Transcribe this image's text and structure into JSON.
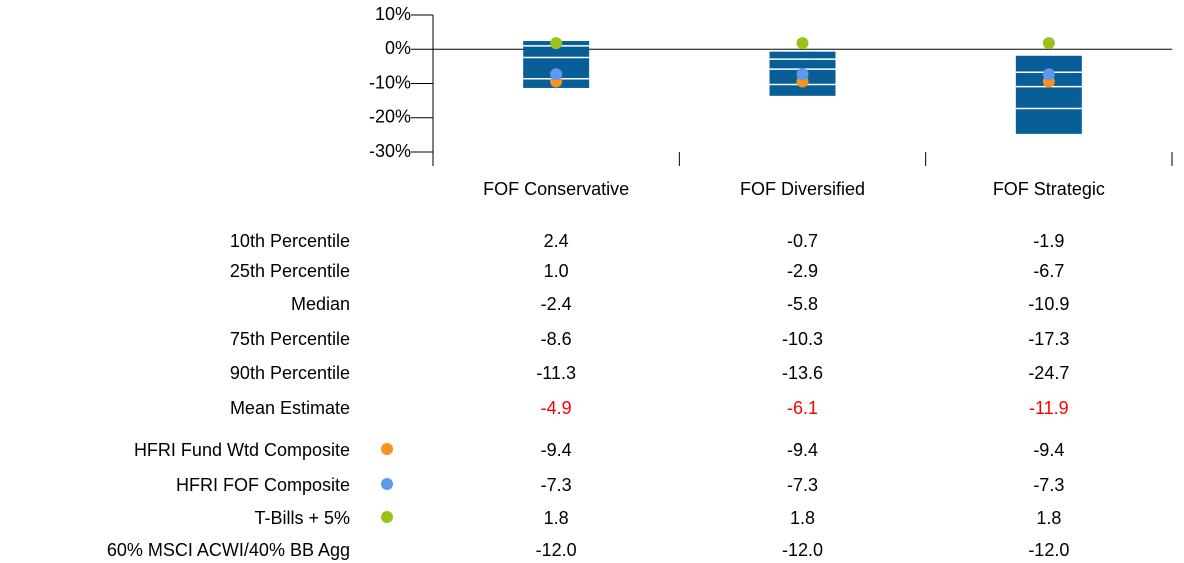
{
  "chart_data": {
    "type": "floating_box",
    "categories": [
      "FOF Conservative",
      "FOF Diversified",
      "FOF Strategic"
    ],
    "ylim": [
      10,
      -30
    ],
    "yticks": [
      {
        "value": 10,
        "label": "10%"
      },
      {
        "value": 0,
        "label": "0%"
      },
      {
        "value": -10,
        "label": "-10%"
      },
      {
        "value": -20,
        "label": "-20%"
      },
      {
        "value": -30,
        "label": "-30%"
      }
    ],
    "box_color": "#085e97",
    "series": [
      {
        "name": "10th Percentile",
        "role": "box_top",
        "values": [
          2.4,
          -0.7,
          -1.9
        ],
        "value_labels": [
          "2.4",
          "-0.7",
          "-1.9"
        ]
      },
      {
        "name": "25th Percentile",
        "role": "box_line",
        "values": [
          1.0,
          -2.9,
          -6.7
        ],
        "value_labels": [
          "1.0",
          "-2.9",
          "-6.7"
        ]
      },
      {
        "name": "Median",
        "role": "box_line",
        "values": [
          -2.4,
          -5.8,
          -10.9
        ],
        "value_labels": [
          "-2.4",
          "-5.8",
          "-10.9"
        ]
      },
      {
        "name": "75th Percentile",
        "role": "box_line",
        "values": [
          -8.6,
          -10.3,
          -17.3
        ],
        "value_labels": [
          "-8.6",
          "-10.3",
          "-17.3"
        ]
      },
      {
        "name": "90th Percentile",
        "role": "box_bottom",
        "values": [
          -11.3,
          -13.6,
          -24.7
        ],
        "value_labels": [
          "-11.3",
          "-13.6",
          "-24.7"
        ]
      },
      {
        "name": "Mean Estimate",
        "role": "text",
        "label_color": "#ff0000",
        "values": [
          -4.9,
          -6.1,
          -11.9
        ],
        "value_labels": [
          "-4.9",
          "-6.1",
          "-11.9"
        ]
      },
      {
        "name": "HFRI Fund Wtd Composite",
        "role": "dot",
        "color": "#f7931e",
        "values": [
          -9.4,
          -9.4,
          -9.4
        ],
        "value_labels": [
          "-9.4",
          "-9.4",
          "-9.4"
        ]
      },
      {
        "name": "HFRI FOF Composite",
        "role": "dot",
        "color": "#5e98ef",
        "values": [
          -7.3,
          -7.3,
          -7.3
        ],
        "value_labels": [
          "-7.3",
          "-7.3",
          "-7.3"
        ]
      },
      {
        "name": "T-Bills + 5%",
        "role": "dot",
        "color": "#9bc21a",
        "values": [
          1.8,
          1.8,
          1.8
        ],
        "value_labels": [
          "1.8",
          "1.8",
          "1.8"
        ]
      },
      {
        "name": "60% MSCI ACWI/40% BB Agg",
        "role": "text",
        "values": [
          -12.0,
          -12.0,
          -12.0
        ],
        "value_labels": [
          "-12.0",
          "-12.0",
          "-12.0"
        ]
      }
    ]
  }
}
